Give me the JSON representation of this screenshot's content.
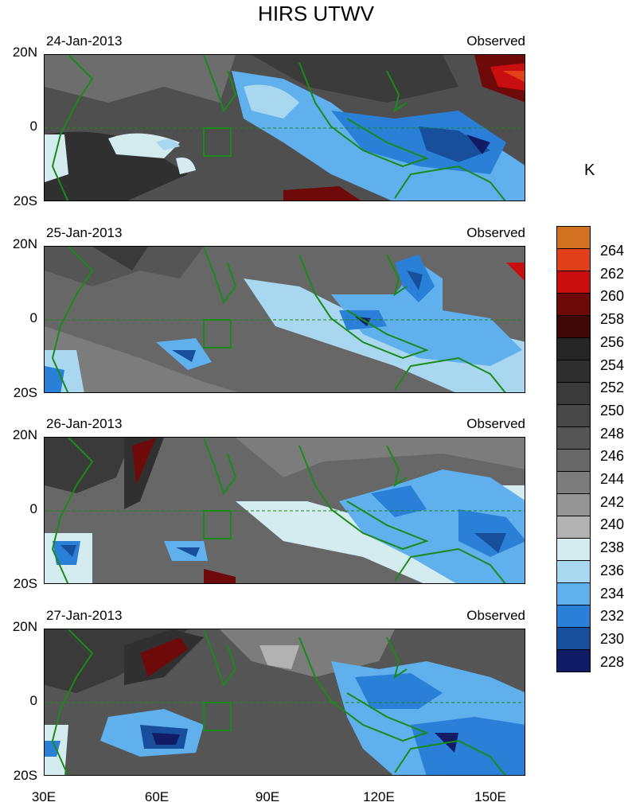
{
  "title": "HIRS UTWV",
  "panels": [
    {
      "date": "24-Jan-2013",
      "label": "Observed"
    },
    {
      "date": "25-Jan-2013",
      "label": "Observed"
    },
    {
      "date": "26-Jan-2013",
      "label": "Observed"
    },
    {
      "date": "27-Jan-2013",
      "label": "Observed"
    }
  ],
  "lat_labels": {
    "north": "20N",
    "eq": "0",
    "south": "20S"
  },
  "lon_labels": [
    "30E",
    "60E",
    "90E",
    "120E",
    "150E"
  ],
  "colorbar": {
    "unit": "K",
    "levels": [
      "264",
      "262",
      "260",
      "258",
      "256",
      "254",
      "252",
      "250",
      "248",
      "246",
      "244",
      "242",
      "240",
      "238",
      "236",
      "234",
      "232",
      "230",
      "228"
    ],
    "colors": [
      "#d2711f",
      "#e2401b",
      "#c80e0e",
      "#6e0a0a",
      "#3e0808",
      "#262626",
      "#2e2e2e",
      "#3a3a3a",
      "#474747",
      "#555555",
      "#676767",
      "#7c7c7c",
      "#959595",
      "#b2b2b2",
      "#d4ecf0",
      "#a9d7ef",
      "#5fb0ec",
      "#2a7fd7",
      "#174f9c",
      "#111b66"
    ]
  }
}
